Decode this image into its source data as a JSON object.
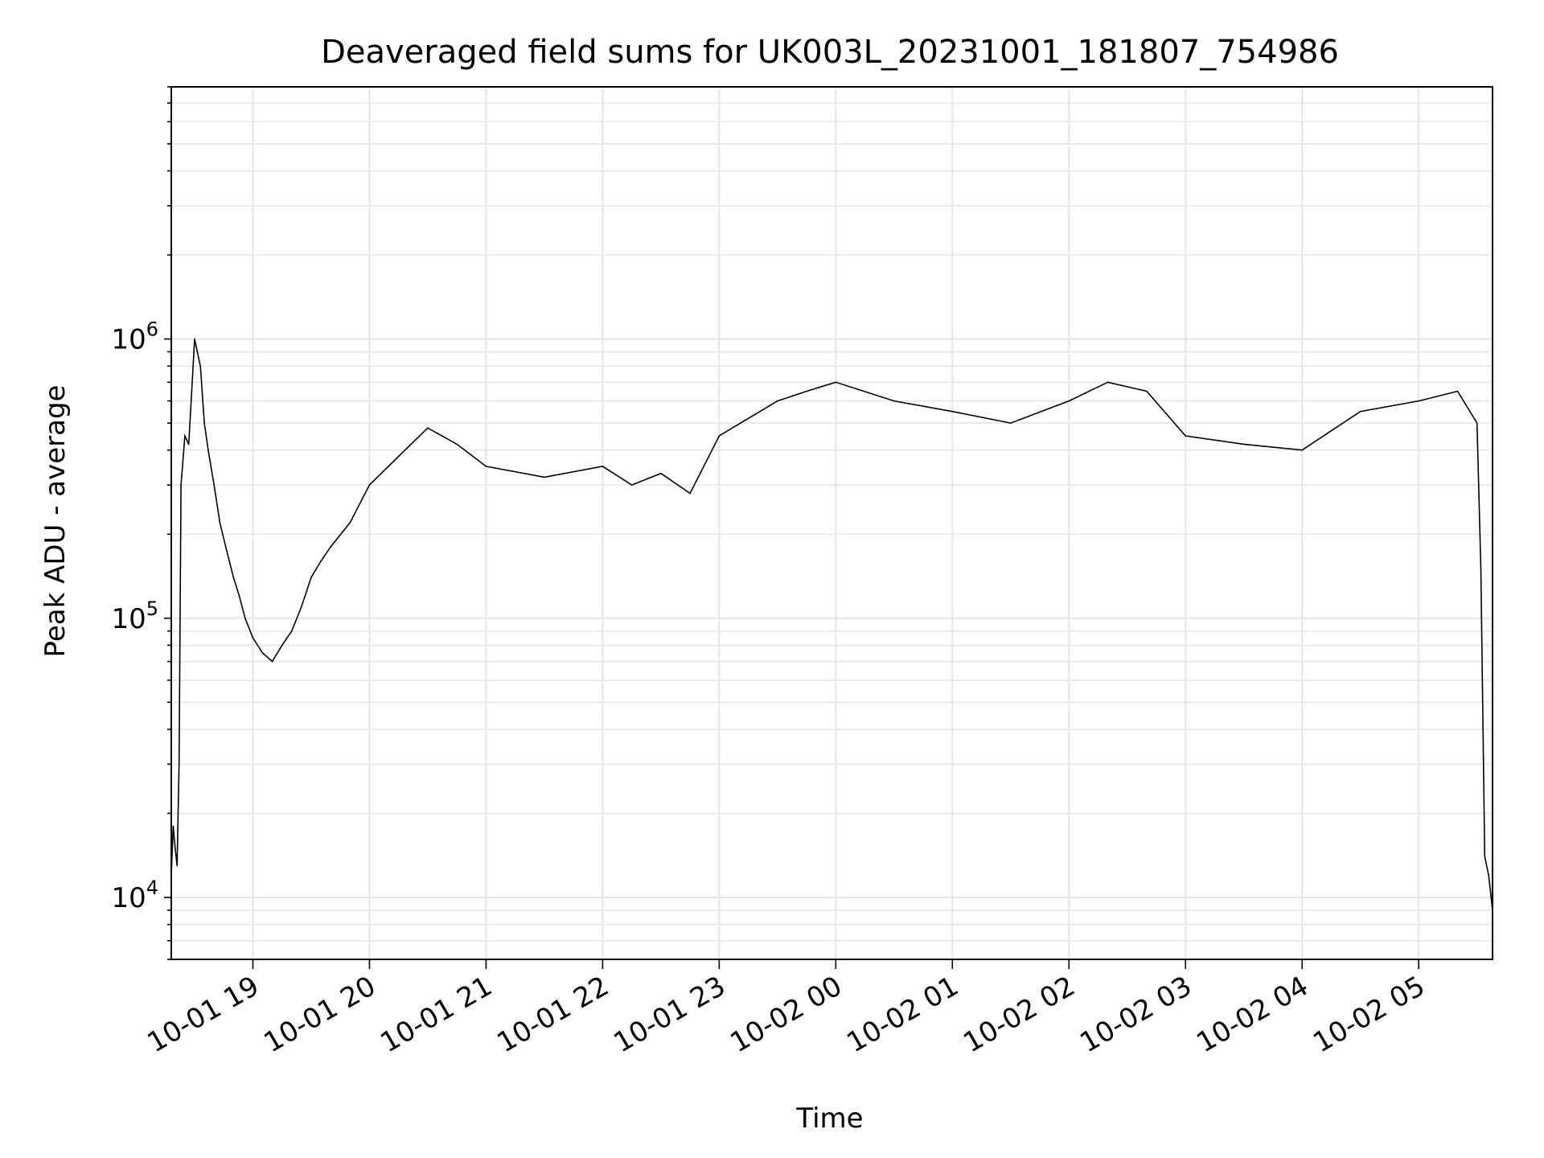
{
  "chart_data": {
    "type": "line",
    "title": "Deaveraged field sums for UK003L_20231001_181807_754986",
    "xlabel": "Time",
    "ylabel": "Peak ADU - average",
    "yscale": "log",
    "ylim": [
      6000,
      8000000
    ],
    "xlim": [
      "2023-10-01 18:18",
      "2023-10-02 05:38"
    ],
    "grid": true,
    "line_color": "#000000",
    "grid_color": "#e6e6e6",
    "x_ticks": [
      {
        "time": "2023-10-01 19:00",
        "label": "10-01 19"
      },
      {
        "time": "2023-10-01 20:00",
        "label": "10-01 20"
      },
      {
        "time": "2023-10-01 21:00",
        "label": "10-01 21"
      },
      {
        "time": "2023-10-01 22:00",
        "label": "10-01 22"
      },
      {
        "time": "2023-10-01 23:00",
        "label": "10-01 23"
      },
      {
        "time": "2023-10-02 00:00",
        "label": "10-02 00"
      },
      {
        "time": "2023-10-02 01:00",
        "label": "10-02 01"
      },
      {
        "time": "2023-10-02 02:00",
        "label": "10-02 02"
      },
      {
        "time": "2023-10-02 03:00",
        "label": "10-02 03"
      },
      {
        "time": "2023-10-02 04:00",
        "label": "10-02 04"
      },
      {
        "time": "2023-10-02 05:00",
        "label": "10-02 05"
      }
    ],
    "y_ticks": [
      {
        "value": 10000,
        "base": "10",
        "exp": "4"
      },
      {
        "value": 100000,
        "base": "10",
        "exp": "5"
      },
      {
        "value": 1000000,
        "base": "10",
        "exp": "6"
      }
    ],
    "series": [
      {
        "x": [
          "2023-10-01 18:18",
          "2023-10-01 18:19",
          "2023-10-01 18:20",
          "2023-10-01 18:21",
          "2023-10-01 18:22",
          "2023-10-01 18:23",
          "2023-10-01 18:25",
          "2023-10-01 18:27",
          "2023-10-01 18:30",
          "2023-10-01 18:33",
          "2023-10-01 18:35",
          "2023-10-01 18:37",
          "2023-10-01 18:40",
          "2023-10-01 18:43",
          "2023-10-01 18:46",
          "2023-10-01 18:50",
          "2023-10-01 18:53",
          "2023-10-01 18:56",
          "2023-10-01 19:00",
          "2023-10-01 19:05",
          "2023-10-01 19:10",
          "2023-10-01 19:15",
          "2023-10-01 19:20",
          "2023-10-01 19:25",
          "2023-10-01 19:30",
          "2023-10-01 19:35",
          "2023-10-01 19:40",
          "2023-10-01 19:50",
          "2023-10-01 20:00",
          "2023-10-01 20:15",
          "2023-10-01 20:30",
          "2023-10-01 20:45",
          "2023-10-01 21:00",
          "2023-10-01 21:30",
          "2023-10-01 22:00",
          "2023-10-01 22:15",
          "2023-10-01 22:30",
          "2023-10-01 22:45",
          "2023-10-01 23:00",
          "2023-10-01 23:30",
          "2023-10-01 23:45",
          "2023-10-02 00:00",
          "2023-10-02 00:30",
          "2023-10-02 01:00",
          "2023-10-02 01:30",
          "2023-10-02 02:00",
          "2023-10-02 02:20",
          "2023-10-02 02:40",
          "2023-10-02 03:00",
          "2023-10-02 03:30",
          "2023-10-02 04:00",
          "2023-10-02 04:30",
          "2023-10-02 05:00",
          "2023-10-02 05:20",
          "2023-10-02 05:30",
          "2023-10-02 05:32",
          "2023-10-02 05:34",
          "2023-10-02 05:36",
          "2023-10-02 05:38"
        ],
        "y": [
          12000,
          18000,
          15000,
          13000,
          30000,
          300000,
          450000,
          420000,
          1000000,
          800000,
          500000,
          400000,
          300000,
          220000,
          180000,
          140000,
          120000,
          100000,
          85000,
          75000,
          70000,
          80000,
          90000,
          110000,
          140000,
          160000,
          180000,
          220000,
          300000,
          380000,
          480000,
          420000,
          350000,
          320000,
          350000,
          300000,
          330000,
          280000,
          450000,
          600000,
          650000,
          700000,
          600000,
          550000,
          500000,
          600000,
          700000,
          650000,
          450000,
          420000,
          400000,
          550000,
          600000,
          650000,
          500000,
          150000,
          14000,
          12000,
          9000
        ]
      }
    ]
  }
}
